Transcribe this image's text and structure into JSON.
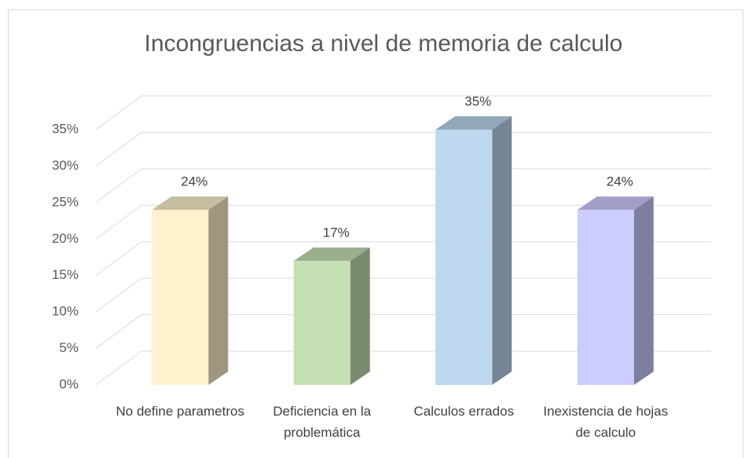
{
  "chart_data": {
    "type": "bar3d",
    "title": "Incongruencias a nivel de memoria de calculo",
    "categories": [
      "No define parametros",
      "Deficiencia en la problemática",
      "Calculos errados",
      "Inexistencia de hojas de calculo"
    ],
    "values": [
      24,
      17,
      35,
      24
    ],
    "value_labels": [
      "24%",
      "17%",
      "35%",
      "24%"
    ],
    "colors": [
      "#fff2cc",
      "#c5e0b4",
      "#bdd7ee",
      "#ccccff"
    ],
    "ylim": [
      0,
      35
    ],
    "yticks": [
      {
        "value": 0,
        "label": "0%"
      },
      {
        "value": 5,
        "label": "5%"
      },
      {
        "value": 10,
        "label": "10%"
      },
      {
        "value": 15,
        "label": "15%"
      },
      {
        "value": 20,
        "label": "20%"
      },
      {
        "value": 25,
        "label": "25%"
      },
      {
        "value": 30,
        "label": "30%"
      },
      {
        "value": 35,
        "label": "35%"
      }
    ],
    "grid": true
  }
}
